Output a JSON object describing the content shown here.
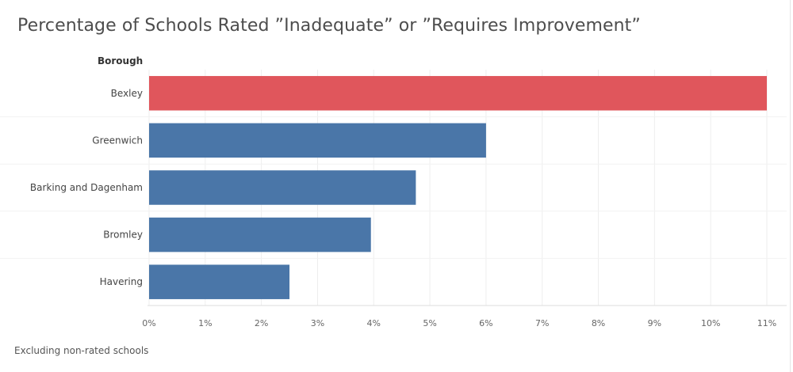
{
  "chart_data": {
    "type": "bar",
    "orientation": "horizontal",
    "title": "Percentage of Schools Rated ”Inadequate” or ”Requires Improvement”",
    "row_header": "Borough",
    "categories": [
      "Bexley",
      "Greenwich",
      "Barking and Dagenham",
      "Bromley",
      "Havering"
    ],
    "values": [
      11.0,
      6.0,
      4.75,
      3.95,
      2.5
    ],
    "value_unit": "%",
    "xlim": [
      0,
      11
    ],
    "x_ticks": [
      "0%",
      "1%",
      "2%",
      "3%",
      "4%",
      "5%",
      "6%",
      "7%",
      "8%",
      "9%",
      "10%",
      "11%"
    ],
    "colors": {
      "highlight": "#e0565c",
      "default": "#4a76a8",
      "grid": "#eeeeee"
    },
    "highlight_category": "Bexley",
    "grid": true,
    "legend": "none",
    "footnote": "Excluding non-rated schools"
  }
}
